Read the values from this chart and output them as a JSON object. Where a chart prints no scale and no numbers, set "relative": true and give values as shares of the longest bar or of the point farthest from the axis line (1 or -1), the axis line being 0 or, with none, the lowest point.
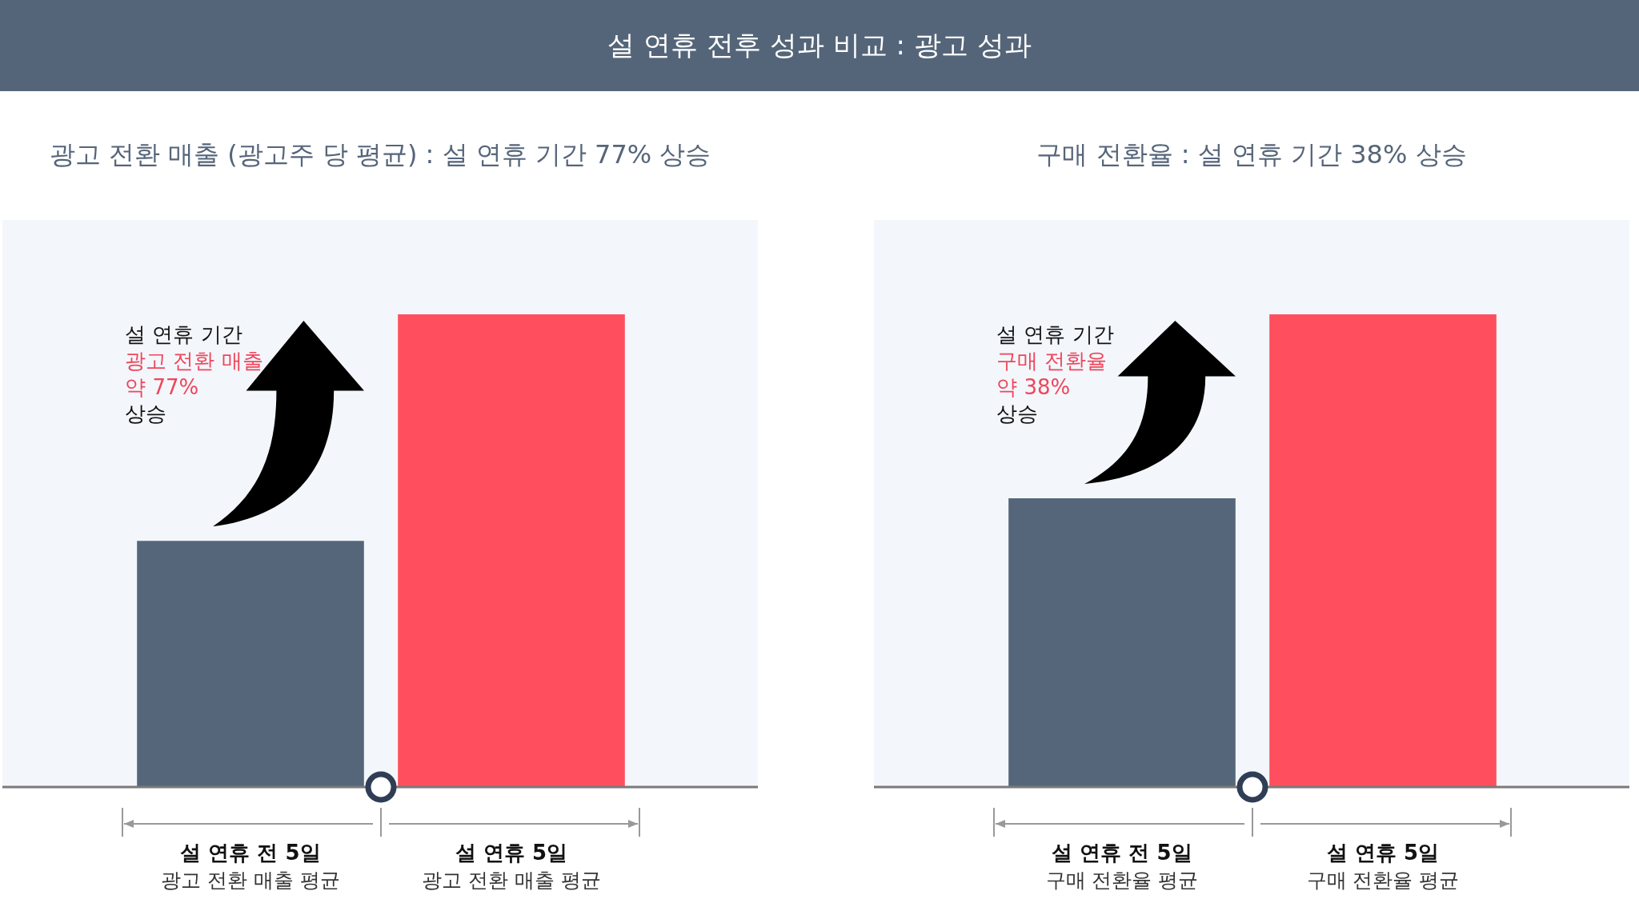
{
  "chart_data": [
    {
      "type": "bar",
      "title": "설 연휴 전후 성과 비교 : 광고 성과",
      "subtitle": "광고 전환 매출 (광고주 당 평균) : 설 연휴 기간 77% 상승",
      "relative": true,
      "categories": [
        "설 연휴 전 5일\n광고 전환 매출 평균",
        "설 연휴 5일\n광고 전환 매출 평균"
      ],
      "values": [
        0.52,
        1
      ],
      "colors": [
        "#56667a",
        "#ff4f5e"
      ],
      "annotations": [
        "설 연휴 기간",
        "광고 전환 매출",
        "약 77%",
        "상승"
      ]
    },
    {
      "type": "bar",
      "subtitle": "구매 전환율 : 설 연휴 기간 38% 상승",
      "relative": true,
      "categories": [
        "설 연휴 전 5일\n구매 전환율 평균",
        "설 연휴 5일\n구매 전환율 평균"
      ],
      "values": [
        0.61,
        1
      ],
      "colors": [
        "#56667a",
        "#ff4f5e"
      ],
      "annotations": [
        "설 연휴 기간",
        "구매 전환율",
        "약 38%",
        "상승"
      ]
    }
  ]
}
